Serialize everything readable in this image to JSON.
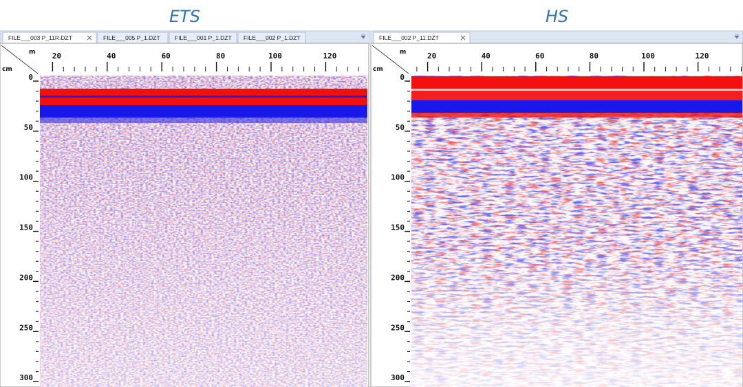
{
  "panels": [
    {
      "title": "ETS",
      "tabs": [
        "FILE___003 P_11R.DZT",
        "FILE___005 P_1.DZT",
        "FILE___001 P_1.DZT",
        "FILE___002 P_1.DZT"
      ],
      "x_unit": "m",
      "y_unit": "cm",
      "x_ticks": [
        20,
        40,
        60,
        80,
        100,
        120
      ],
      "y_ticks": [
        0,
        50,
        100,
        150,
        200,
        250,
        300
      ]
    },
    {
      "title": "HS",
      "tabs": [
        "FILE___002 P_11.DZT"
      ],
      "x_unit": "m",
      "y_unit": "cm",
      "x_ticks": [
        20,
        40,
        60,
        80,
        100,
        120
      ],
      "y_ticks": [
        0,
        50,
        100,
        150,
        200,
        250,
        300
      ]
    }
  ]
}
